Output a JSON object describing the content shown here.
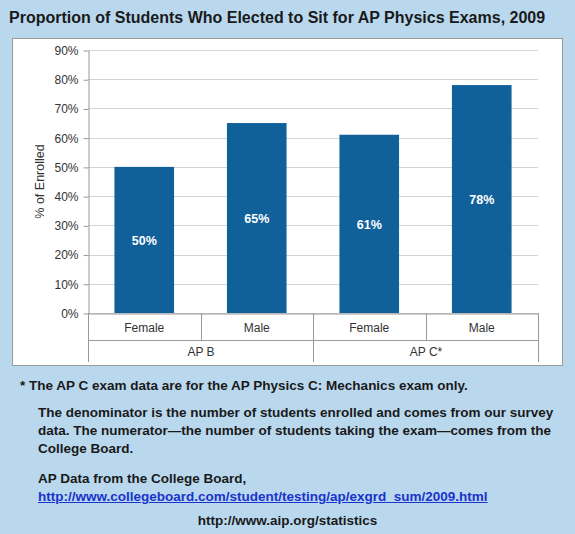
{
  "chart_data": {
    "type": "bar",
    "title": "Proportion of Students Who Elected to Sit for AP Physics Exams, 2009",
    "categories": [
      "Female",
      "Male",
      "Female",
      "Male"
    ],
    "x_groups": [
      "AP B",
      "AP B",
      "AP C*",
      "AP C*"
    ],
    "values": [
      50,
      65,
      61,
      78
    ],
    "value_labels": [
      "50%",
      "65%",
      "61%",
      "78%"
    ],
    "data_labels": true,
    "color": "#10609a",
    "y_label": "% of Enrolled",
    "ylim": [
      0,
      90
    ],
    "yticks": [
      {
        "value": 0,
        "label": "0%"
      },
      {
        "value": 10,
        "label": "10%"
      },
      {
        "value": 20,
        "label": "20%"
      },
      {
        "value": 30,
        "label": "30%"
      },
      {
        "value": 40,
        "label": "40%"
      },
      {
        "value": 50,
        "label": "50%"
      },
      {
        "value": 60,
        "label": "60%"
      },
      {
        "value": 70,
        "label": "70%"
      },
      {
        "value": 80,
        "label": "80%"
      },
      {
        "value": 90,
        "label": "90%"
      }
    ],
    "grid": true,
    "annotations": [
      "* The AP C exam data are for the AP Physics C: Mechanics exam only.",
      "The denominator is the number of students enrolled and comes from our survey data. The numerator—the number of students taking the exam—comes from the College Board.",
      "AP Data from the College Board,",
      "http://www.collegeboard.com/student/testing/ap/exgrd_sum/2009.html",
      "http://www.aip.org/statistics"
    ]
  }
}
